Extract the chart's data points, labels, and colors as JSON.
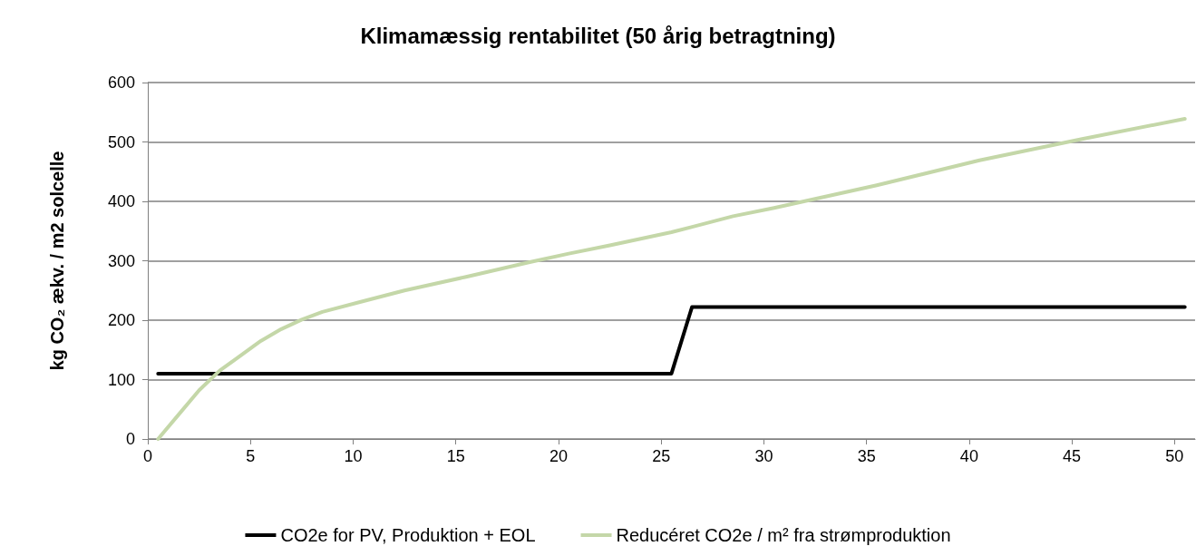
{
  "chart_data": {
    "type": "line",
    "title": "Klimamæssig rentabilitet (50 årig betragtning)",
    "ylabel": "kg CO₂ ækv. / m2 solcelle",
    "xlim": [
      0,
      51
    ],
    "xticks": [
      0,
      5,
      10,
      15,
      20,
      25,
      30,
      35,
      40,
      45,
      50
    ],
    "ylim": [
      0,
      600
    ],
    "yticks": [
      0,
      100,
      200,
      300,
      400,
      500,
      600
    ],
    "grid": "y",
    "legend": "bottom",
    "marker": "none",
    "line_style": "solid",
    "series": [
      {
        "name": "CO2e for PV, Produktion + EOL",
        "color": "#000000",
        "x": [
          0.5,
          25.5,
          26.5,
          50.5
        ],
        "values": [
          110,
          110,
          222,
          222
        ]
      },
      {
        "name": "Reducéret CO2e / m² fra strømproduktion",
        "color": "#c4d7a8",
        "x": [
          0.5,
          1.5,
          2.5,
          3.5,
          5.5,
          6.5,
          7.5,
          8.5,
          10.5,
          12.5,
          15.5,
          18.5,
          20.5,
          22.5,
          25.5,
          28.5,
          30.5,
          35.5,
          40.5,
          45.5,
          50.5
        ],
        "values": [
          0,
          41,
          82,
          115,
          165,
          185,
          201,
          214,
          232,
          250,
          273,
          297,
          312,
          326,
          348,
          375,
          389,
          427,
          469,
          505,
          539
        ]
      }
    ]
  }
}
